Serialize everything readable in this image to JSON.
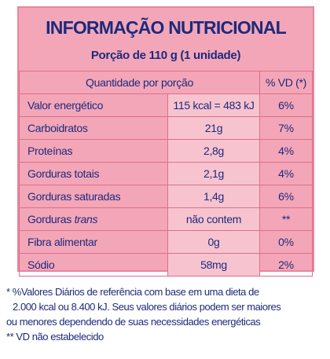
{
  "header": {
    "title": "INFORMAÇÃO NUTRICIONAL",
    "serving": "Porção de 110 g (1 unidade)"
  },
  "table": {
    "columns": [
      "Quantidade por porção",
      "% VD (*)"
    ],
    "rows": [
      {
        "nutrient": "Valor energético",
        "amount": "115 kcal = 483 kJ",
        "dv": "6%"
      },
      {
        "nutrient": "Carboidratos",
        "amount": "21g",
        "dv": "7%"
      },
      {
        "nutrient": "Proteínas",
        "amount": "2,8g",
        "dv": "4%"
      },
      {
        "nutrient": "Gorduras totais",
        "amount": "2,1g",
        "dv": "4%"
      },
      {
        "nutrient": "Gorduras saturadas",
        "amount": "1,4g",
        "dv": "6%"
      },
      {
        "nutrient": "Gorduras",
        "nutrient_italic": "trans",
        "amount": "não contem",
        "dv": "**"
      },
      {
        "nutrient": "Fibra alimentar",
        "amount": "0g",
        "dv": "0%"
      },
      {
        "nutrient": "Sódio",
        "amount": "58mg",
        "dv": "2%"
      }
    ]
  },
  "footnotes": [
    "* %Valores Diários de referência com base em uma dieta de",
    "2.000 kcal ou 8.400 kJ. Seus valores diários podem ser maiores",
    "ou menores dependendo de suas necessidades energéticas",
    "** VD não estabelecido"
  ]
}
